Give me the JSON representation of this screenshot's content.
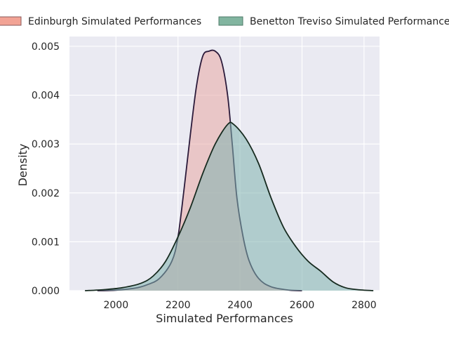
{
  "chart_data": {
    "type": "area",
    "xlabel": "Simulated Performances",
    "ylabel": "Density",
    "xlim": [
      1850,
      2850
    ],
    "ylim": [
      0,
      0.0052
    ],
    "x_ticks": [
      2000,
      2200,
      2400,
      2600,
      2800
    ],
    "x_tick_labels": [
      "2000",
      "2200",
      "2400",
      "2600",
      "2800"
    ],
    "y_ticks": [
      0,
      0.001,
      0.002,
      0.003,
      0.004,
      0.005
    ],
    "y_tick_labels": [
      "0.000",
      "0.001",
      "0.002",
      "0.003",
      "0.004",
      "0.005"
    ],
    "grid": true,
    "legend_position": "top",
    "series": [
      {
        "name": "Edinburgh Simulated Performances",
        "fill": "#e8a8a4",
        "legend_fill": "#f2a395",
        "stroke": "#2b1a3a",
        "points": [
          [
            1940,
            0.0
          ],
          [
            2000,
            1e-05
          ],
          [
            2060,
            5e-05
          ],
          [
            2100,
            0.00012
          ],
          [
            2140,
            0.00025
          ],
          [
            2180,
            0.0006
          ],
          [
            2200,
            0.0011
          ],
          [
            2220,
            0.0021
          ],
          [
            2240,
            0.0032
          ],
          [
            2260,
            0.0042
          ],
          [
            2280,
            0.0048
          ],
          [
            2300,
            0.0049
          ],
          [
            2320,
            0.0049
          ],
          [
            2340,
            0.0047
          ],
          [
            2360,
            0.004
          ],
          [
            2375,
            0.003
          ],
          [
            2390,
            0.0019
          ],
          [
            2410,
            0.0011
          ],
          [
            2430,
            0.0006
          ],
          [
            2460,
            0.00025
          ],
          [
            2500,
            8e-05
          ],
          [
            2560,
            1e-05
          ],
          [
            2600,
            0.0
          ]
        ]
      },
      {
        "name": "Benetton Treviso Simulated Performances",
        "fill": "#7fb2ae",
        "legend_fill": "#82b5a0",
        "stroke": "#162a1f",
        "points": [
          [
            1900,
            0.0
          ],
          [
            1960,
            2e-05
          ],
          [
            2020,
            6e-05
          ],
          [
            2080,
            0.00015
          ],
          [
            2120,
            0.0003
          ],
          [
            2160,
            0.0006
          ],
          [
            2200,
            0.0011
          ],
          [
            2240,
            0.0017
          ],
          [
            2280,
            0.0024
          ],
          [
            2320,
            0.003
          ],
          [
            2360,
            0.0034
          ],
          [
            2380,
            0.0034
          ],
          [
            2420,
            0.0031
          ],
          [
            2460,
            0.0026
          ],
          [
            2500,
            0.0019
          ],
          [
            2540,
            0.0013
          ],
          [
            2580,
            0.0009
          ],
          [
            2620,
            0.0006
          ],
          [
            2660,
            0.0004
          ],
          [
            2700,
            0.00018
          ],
          [
            2740,
            6e-05
          ],
          [
            2780,
            2e-05
          ],
          [
            2830,
            0.0
          ]
        ]
      }
    ]
  }
}
